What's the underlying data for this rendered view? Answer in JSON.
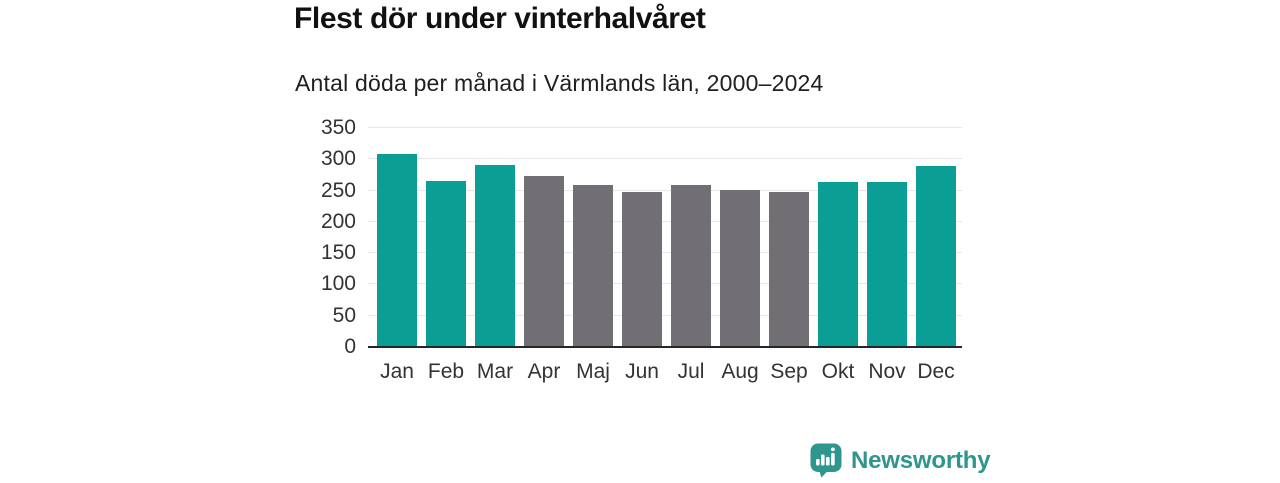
{
  "header": {
    "title": "Flest dör under vinterhalvåret",
    "subtitle": "Antal döda per månad i Värmlands län, 2000–2024"
  },
  "branding": {
    "name": "Newsworthy",
    "icon": "newsworthy-speech-bubble-barchart-icon",
    "text_color": "#2f968d",
    "icon_color": "#2f968d"
  },
  "chart_data": {
    "type": "bar",
    "title": "Flest dör under vinterhalvåret",
    "subtitle": "Antal döda per månad i Värmlands län, 2000–2024",
    "categories": [
      "Jan",
      "Feb",
      "Mar",
      "Apr",
      "Maj",
      "Jun",
      "Jul",
      "Aug",
      "Sep",
      "Okt",
      "Nov",
      "Dec"
    ],
    "values": [
      309,
      266,
      291,
      274,
      259,
      248,
      259,
      251,
      247,
      263,
      264,
      289
    ],
    "highlighted": [
      true,
      true,
      true,
      false,
      false,
      false,
      false,
      false,
      false,
      true,
      true,
      true
    ],
    "highlight_color": "#0a9e94",
    "base_color": "#716f74",
    "xlabel": "",
    "ylabel": "",
    "ylim": [
      0,
      350
    ],
    "ytick_step": 50,
    "grid": true,
    "legend": false,
    "gridline_color": "#e8e8e8",
    "axis_line_color": "#262626",
    "tick_label_color": "#333333"
  }
}
